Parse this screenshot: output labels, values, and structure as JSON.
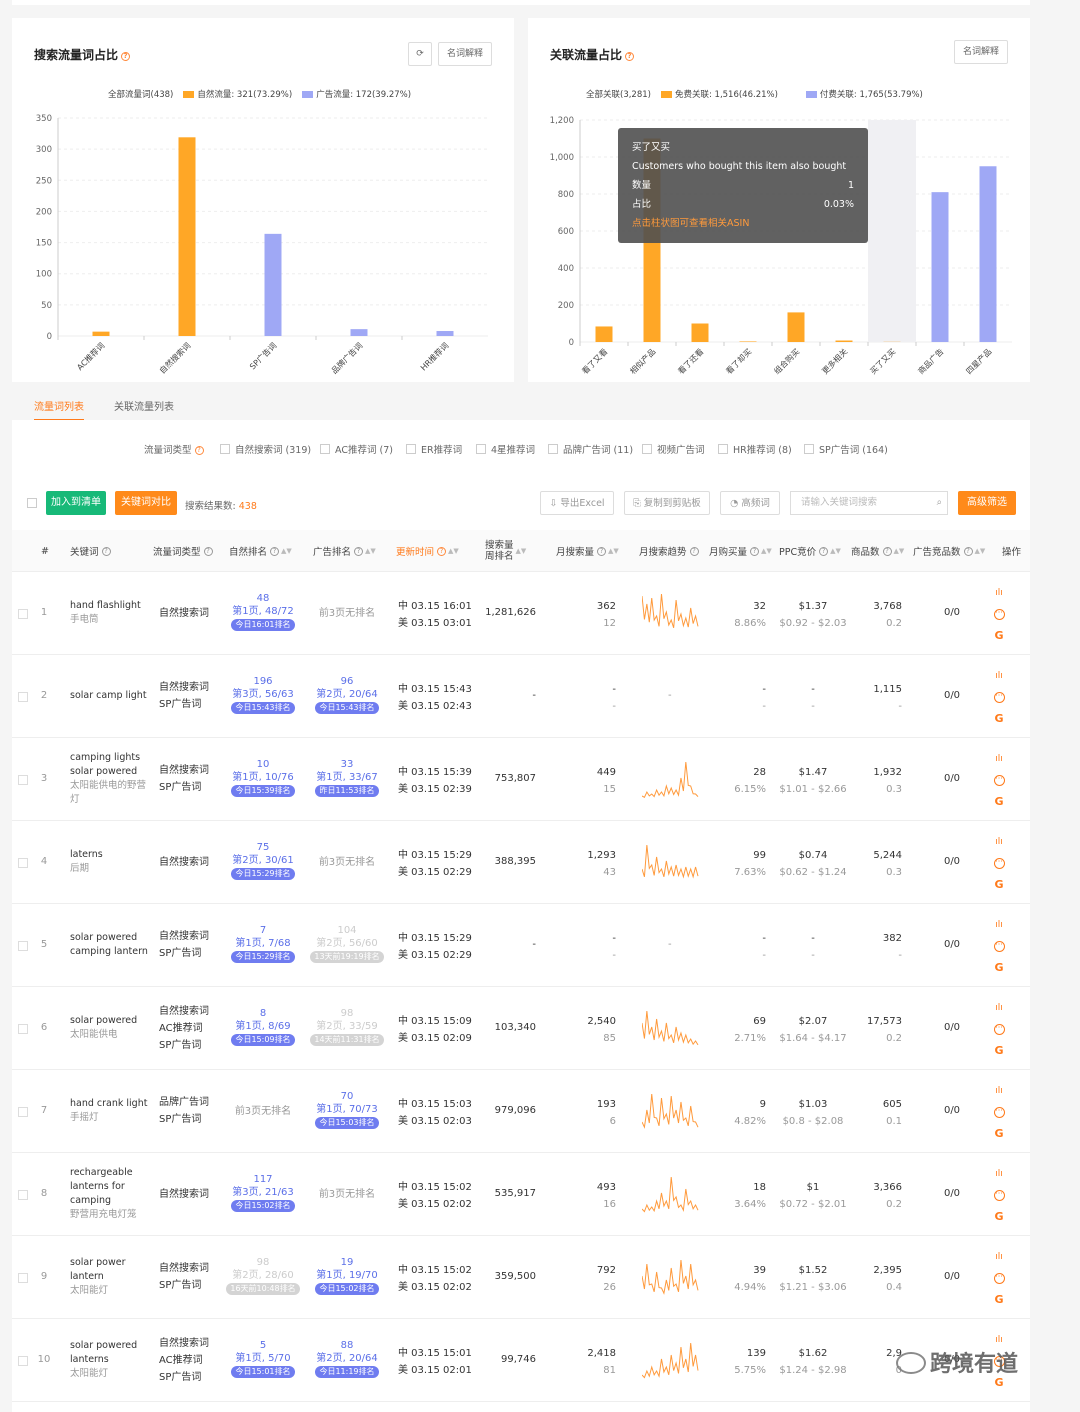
{
  "left_panel": {
    "title": "搜索流量词占比",
    "btn_glossary": "名词解释",
    "legend": [
      "全部流量词(438)",
      "自然流量: 321(73.29%)",
      "广告流量: 172(39.27%)"
    ]
  },
  "right_panel": {
    "title": "关联流量占比",
    "btn_glossary": "名词解释",
    "legend": [
      "全部关联(3,281)",
      "免费关联: 1,516(46.21%)",
      "付费关联: 1,765(53.79%)"
    ]
  },
  "chart_data": [
    {
      "type": "bar",
      "categories": [
        "AC推荐词",
        "自然搜索词",
        "SP广告词",
        "品牌广告词",
        "HR推荐词"
      ],
      "series": [
        {
          "name": "自然流量",
          "color": "#ffa726",
          "values": [
            7,
            319,
            null,
            null,
            null
          ]
        },
        {
          "name": "广告流量",
          "color": "#9fa8f5",
          "values": [
            null,
            null,
            164,
            11,
            8
          ]
        }
      ],
      "ylim": [
        0,
        350
      ],
      "yticks": [
        0,
        50,
        100,
        150,
        200,
        250,
        300,
        350
      ]
    },
    {
      "type": "bar",
      "categories": [
        "看了又看",
        "相似产品",
        "看了还看",
        "看了却买",
        "组合购买",
        "更多相关",
        "买了又买",
        "商品广告",
        "四星产品"
      ],
      "series": [
        {
          "name": "免费关联",
          "color": "#ffa726",
          "values": [
            84,
            1100,
            100,
            3,
            160,
            8,
            1,
            null,
            null
          ]
        },
        {
          "name": "付费关联",
          "color": "#9fa8f5",
          "values": [
            null,
            null,
            null,
            null,
            null,
            null,
            null,
            810,
            950
          ]
        }
      ],
      "ylim": [
        0,
        1200
      ],
      "yticks": [
        0,
        200,
        400,
        600,
        800,
        1000,
        1200
      ],
      "highlighted": "买了又买"
    }
  ],
  "tooltip": {
    "title": "买了又买",
    "subtitle": "Customers who bought this item also bought",
    "qty_label": "数量",
    "qty": "1",
    "pct_label": "占比",
    "pct": "0.03%",
    "link": "点击柱状图可查看相关ASIN"
  },
  "tabs": [
    "流量词列表",
    "关联流量列表"
  ],
  "filters": {
    "label": "流量词类型",
    "options": [
      "自然搜索词 (319)",
      "AC推荐词 (7)",
      "ER推荐词",
      "4星推荐词",
      "品牌广告词 (11)",
      "视频广告词",
      "HR推荐词 (8)",
      "SP广告词 (164)"
    ]
  },
  "toolbar": {
    "add_list": "加入到清单",
    "compare": "关键词对比",
    "result_label": "搜索结果数:",
    "result_count": "438",
    "export": "导出Excel",
    "copy": "复制到剪贴板",
    "freq": "高频词",
    "search_placeholder": "请输入关键词搜索",
    "advanced": "高级筛选"
  },
  "columns": [
    "#",
    "关键词",
    "流量词类型",
    "自然排名",
    "广告排名",
    "更新时间",
    "搜索量\n周排名",
    "月搜索量",
    "月搜索趋势",
    "月购买量",
    "PPC竞价",
    "商品数",
    "广告竞品数",
    "操作"
  ],
  "rows": [
    {
      "n": "1",
      "kw": [
        "hand flashlight"
      ],
      "cn": [
        "手电筒"
      ],
      "types": [
        "自然搜索词"
      ],
      "nat": {
        "a": "48",
        "b": "第1页, 48/72",
        "badge": "今日16:01排名",
        "style": "blue"
      },
      "ad": {
        "text": "前3页无排名"
      },
      "cn_t": "中 03.15 16:01",
      "us_t": "美 03.15 03:01",
      "rank": "1,281,626",
      "ms": "362",
      "ms2": "12",
      "buy": "32",
      "buy2": "8.86%",
      "ppc": "$1.37",
      "ppc2": "$0.92 - $2.03",
      "prod": "3,768",
      "prod2": "0.2",
      "comp": "0/0",
      "spark": [
        0.9,
        0.7,
        0.85,
        0.4,
        0.95,
        0.5,
        0.3,
        0.8,
        0.45,
        0.35,
        0.6,
        0.4
      ]
    },
    {
      "n": "2",
      "kw": [
        "solar camp light"
      ],
      "cn": [],
      "types": [
        "自然搜索词",
        "SP广告词"
      ],
      "nat": {
        "a": "196",
        "b": "第3页, 56/63",
        "badge": "今日15:43排名",
        "style": "blue"
      },
      "ad": {
        "a": "96",
        "b": "第2页, 20/64",
        "badge": "今日15:43排名",
        "style": "blue"
      },
      "cn_t": "中 03.15 15:43",
      "us_t": "美 03.15 02:43",
      "rank": "-",
      "ms": "-",
      "ms2": "-",
      "buy": "-",
      "buy2": "-",
      "ppc": "-",
      "ppc2": "-",
      "prod": "1,115",
      "prod2": "-",
      "comp": "0/0",
      "spark": [],
      "spark_dash": "-"
    },
    {
      "n": "3",
      "kw": [
        "camping lights",
        "solar powered"
      ],
      "cn": [
        "太阳能供电的野营",
        "灯"
      ],
      "types": [
        "自然搜索词",
        "SP广告词"
      ],
      "nat": {
        "a": "10",
        "b": "第1页, 10/76",
        "badge": "今日15:39排名",
        "style": "blue"
      },
      "ad": {
        "a": "33",
        "b": "第1页, 33/67",
        "badge": "昨日11:53排名",
        "style": "blue"
      },
      "cn_t": "中 03.15 15:39",
      "us_t": "美 03.15 02:39",
      "rank": "753,807",
      "ms": "449",
      "ms2": "15",
      "buy": "28",
      "buy2": "6.15%",
      "ppc": "$1.47",
      "ppc2": "$1.01 - $2.66",
      "prod": "1,932",
      "prod2": "0.3",
      "comp": "0/0",
      "spark": [
        0.05,
        0.15,
        0.1,
        0.2,
        0.15,
        0.3,
        0.25,
        0.2,
        0.5,
        0.9,
        0.3,
        0.1
      ]
    },
    {
      "n": "4",
      "kw": [
        "laterns"
      ],
      "cn": [
        "后期"
      ],
      "types": [
        "自然搜索词"
      ],
      "nat": {
        "a": "75",
        "b": "第2页, 30/61",
        "badge": "今日15:29排名",
        "style": "blue"
      },
      "ad": {
        "text": "前3页无排名"
      },
      "cn_t": "中 03.15 15:29",
      "us_t": "美 03.15 02:29",
      "rank": "388,395",
      "ms": "1,293",
      "ms2": "43",
      "buy": "99",
      "buy2": "7.63%",
      "ppc": "$0.74",
      "ppc2": "$0.62 - $1.24",
      "prod": "5,244",
      "prod2": "0.3",
      "comp": "0/0",
      "spark": [
        0.3,
        0.9,
        0.4,
        0.6,
        0.3,
        0.5,
        0.35,
        0.4,
        0.3,
        0.35,
        0.3,
        0.35
      ]
    },
    {
      "n": "5",
      "kw": [
        "solar powered",
        "camping lantern"
      ],
      "cn": [],
      "types": [
        "自然搜索词",
        "SP广告词"
      ],
      "nat": {
        "a": "7",
        "b": "第1页, 7/68",
        "badge": "今日15:29排名",
        "style": "blue"
      },
      "ad": {
        "a": "104",
        "b": "第2页, 56/60",
        "badge": "13天前19:19排名",
        "style": "gray"
      },
      "cn_t": "中 03.15 15:29",
      "us_t": "美 03.15 02:29",
      "rank": "-",
      "ms": "-",
      "ms2": "-",
      "buy": "-",
      "buy2": "-",
      "ppc": "-",
      "ppc2": "-",
      "prod": "382",
      "prod2": "-",
      "comp": "0/0",
      "spark": [],
      "spark_dash": "-"
    },
    {
      "n": "6",
      "kw": [
        "solar powered"
      ],
      "cn": [
        "太阳能供电"
      ],
      "types": [
        "自然搜索词",
        "AC推荐词",
        "SP广告词"
      ],
      "nat": {
        "a": "8",
        "b": "第1页, 8/69",
        "badge": "今日15:09排名",
        "style": "blue"
      },
      "ad": {
        "a": "98",
        "b": "第2页, 33/59",
        "badge": "14天前11:31排名",
        "style": "gray"
      },
      "cn_t": "中 03.15 15:09",
      "us_t": "美 03.15 02:09",
      "rank": "103,340",
      "ms": "2,540",
      "ms2": "85",
      "buy": "69",
      "buy2": "2.71%",
      "ppc": "$2.07",
      "ppc2": "$1.64 - $4.17",
      "prod": "17,573",
      "prod2": "0.2",
      "comp": "0/0",
      "spark": [
        0.6,
        0.9,
        0.5,
        0.7,
        0.4,
        0.6,
        0.3,
        0.5,
        0.35,
        0.3,
        0.2,
        0.15
      ]
    },
    {
      "n": "7",
      "kw": [
        "hand crank light"
      ],
      "cn": [
        "手摇灯"
      ],
      "types": [
        "品牌广告词",
        "SP广告词"
      ],
      "nat": {
        "text": "前3页无排名"
      },
      "ad": {
        "a": "70",
        "b": "第1页, 70/73",
        "badge": "今日15:03排名",
        "style": "blue"
      },
      "cn_t": "中 03.15 15:03",
      "us_t": "美 03.15 02:03",
      "rank": "979,096",
      "ms": "193",
      "ms2": "6",
      "buy": "9",
      "buy2": "4.82%",
      "ppc": "$1.03",
      "ppc2": "$0.8 - $2.08",
      "prod": "605",
      "prod2": "0.1",
      "comp": "0/0",
      "spark": [
        0.2,
        0.5,
        0.9,
        0.3,
        0.8,
        0.4,
        0.85,
        0.5,
        0.7,
        0.3,
        0.6,
        0.2
      ]
    },
    {
      "n": "8",
      "kw": [
        "rechargeable",
        "lanterns for",
        "camping"
      ],
      "cn": [
        "野营用充电灯笼"
      ],
      "types": [
        "自然搜索词"
      ],
      "nat": {
        "a": "117",
        "b": "第3页, 21/63",
        "badge": "今日15:02排名",
        "style": "blue"
      },
      "ad": {
        "text": "前3页无排名"
      },
      "cn_t": "中 03.15 15:02",
      "us_t": "美 03.15 02:02",
      "rank": "535,917",
      "ms": "493",
      "ms2": "16",
      "buy": "18",
      "buy2": "3.64%",
      "ppc": "$1",
      "ppc2": "$0.72 - $2.01",
      "prod": "3,366",
      "prod2": "0.2",
      "comp": "0/0",
      "spark": [
        0.1,
        0.2,
        0.15,
        0.3,
        0.5,
        0.3,
        0.9,
        0.4,
        0.2,
        0.6,
        0.3,
        0.2
      ]
    },
    {
      "n": "9",
      "kw": [
        "solar power",
        "lantern"
      ],
      "cn": [
        "太阳能灯"
      ],
      "types": [
        "自然搜索词",
        "SP广告词"
      ],
      "nat": {
        "a": "98",
        "b": "第2页, 28/60",
        "badge": "16天前10:48排名",
        "style": "gray"
      },
      "ad": {
        "a": "19",
        "b": "第1页, 19/70",
        "badge": "今日15:02排名",
        "style": "blue"
      },
      "cn_t": "中 03.15 15:02",
      "us_t": "美 03.15 02:02",
      "rank": "359,500",
      "ms": "792",
      "ms2": "26",
      "buy": "39",
      "buy2": "4.94%",
      "ppc": "$1.52",
      "ppc2": "$1.21 - $3.06",
      "prod": "2,395",
      "prod2": "0.4",
      "comp": "0/0",
      "spark": [
        0.5,
        0.8,
        0.3,
        0.6,
        0.2,
        0.4,
        0.7,
        0.3,
        0.9,
        0.5,
        0.8,
        0.4
      ]
    },
    {
      "n": "10",
      "kw": [
        "solar powered",
        "lanterns"
      ],
      "cn": [
        "太阳能灯"
      ],
      "types": [
        "自然搜索词",
        "AC推荐词",
        "SP广告词"
      ],
      "nat": {
        "a": "5",
        "b": "第1页, 5/70",
        "badge": "今日15:01排名",
        "style": "blue"
      },
      "ad": {
        "a": "88",
        "b": "第2页, 20/64",
        "badge": "今日11:19排名",
        "style": "blue"
      },
      "cn_t": "中 03.15 15:01",
      "us_t": "美 03.15 02:01",
      "rank": "99,746",
      "ms": "2,418",
      "ms2": "81",
      "buy": "139",
      "buy2": "5.75%",
      "ppc": "$1.62",
      "ppc2": "$1.24 - $2.98",
      "prod": "2,9",
      "prod2": "0",
      "comp": "0/0",
      "spark": [
        0.1,
        0.2,
        0.3,
        0.2,
        0.5,
        0.3,
        0.6,
        0.4,
        0.8,
        0.5,
        0.9,
        0.6
      ]
    }
  ],
  "watermark": "跨境有道",
  "icons": {
    "refresh": "refresh-icon",
    "chart": "bar-chart-icon",
    "more": "more-icon",
    "google": "google-icon"
  }
}
